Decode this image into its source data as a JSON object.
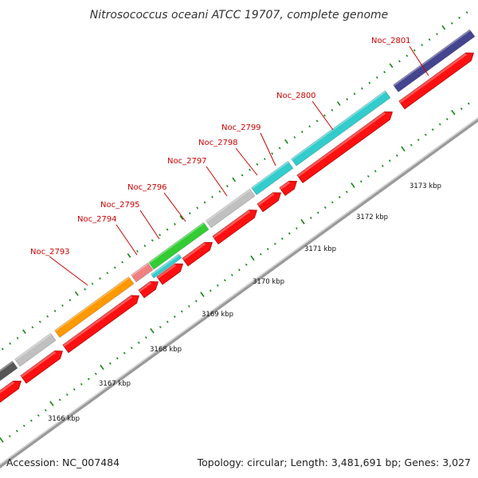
{
  "title": "Nitrosococcus oceani ATCC 19707, complete genome",
  "footer": {
    "accession": "Accession: NC_007484",
    "summary": "Topology: circular; Length: 3,481,691 bp; Genes: 3,027"
  },
  "colors": {
    "label": "#cc0000",
    "forward_cds": "#ff1010",
    "backbone": "#999999",
    "ticks": "#118811"
  },
  "scale_labels": [
    "3166 kbp",
    "3167 kbp",
    "3168 kbp",
    "3169 kbp",
    "3170 kbp",
    "3171 kbp",
    "3172 kbp",
    "3173 kbp"
  ],
  "gene_labels": [
    "Noc_2793",
    "Noc_2794",
    "Noc_2795",
    "Noc_2796",
    "Noc_2797",
    "Noc_2798",
    "Noc_2799",
    "Noc_2800",
    "Noc_2801"
  ],
  "feature_track": [
    {
      "color": "#555555"
    },
    {
      "color": "#c0c0c0"
    },
    {
      "color": "#ff9900"
    },
    {
      "color": "#f08080"
    },
    {
      "color": "#33cc33"
    },
    {
      "color": "#33cccc"
    },
    {
      "color": "#c0c0c0"
    },
    {
      "color": "#33cccc"
    },
    {
      "color": "#33cccc"
    },
    {
      "color": "#44448f"
    }
  ]
}
